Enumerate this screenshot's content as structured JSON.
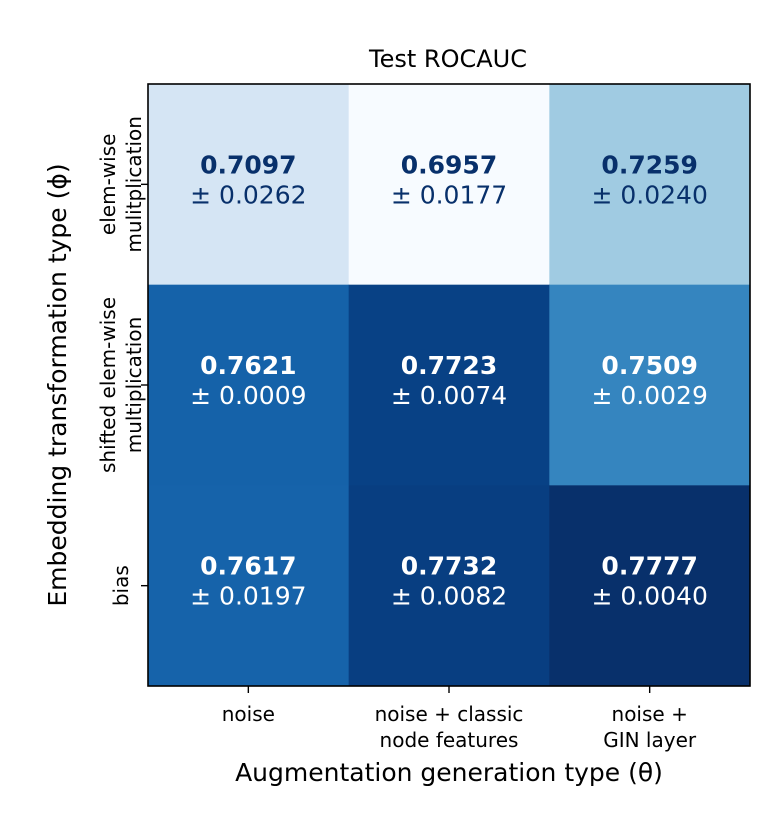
{
  "chart_data": {
    "type": "heatmap",
    "title": "Test ROCAUC",
    "xlabel": "Augmentation generation type (θ)",
    "ylabel": "Embedding transformation type (ϕ)",
    "x_categories": [
      [
        "noise"
      ],
      [
        "noise + classic",
        "node features"
      ],
      [
        "noise +",
        "GIN layer"
      ]
    ],
    "y_categories": [
      [
        "elem-wise",
        "mulitplication"
      ],
      [
        "shifted elem-wise",
        "multiplication"
      ],
      [
        "bias"
      ]
    ],
    "values": [
      [
        0.7097,
        0.6957,
        0.7259
      ],
      [
        0.7621,
        0.7723,
        0.7509
      ],
      [
        0.7617,
        0.7732,
        0.7777
      ]
    ],
    "std": [
      [
        "± 0.0262",
        "± 0.0177",
        "± 0.0240"
      ],
      [
        "± 0.0009",
        "± 0.0074",
        "± 0.0029"
      ],
      [
        "± 0.0197",
        "± 0.0082",
        "± 0.0040"
      ]
    ],
    "value_labels": [
      [
        "0.7097",
        "0.6957",
        "0.7259"
      ],
      [
        "0.7621",
        "0.7723",
        "0.7509"
      ],
      [
        "0.7617",
        "0.7732",
        "0.7777"
      ]
    ],
    "colormap": "Blues",
    "value_range": [
      0.6957,
      0.7777
    ],
    "grid": false
  }
}
